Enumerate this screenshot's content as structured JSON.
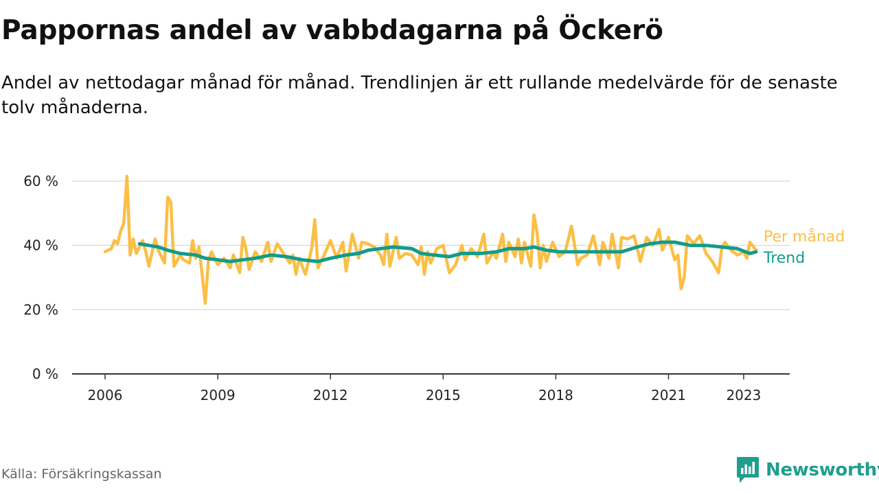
{
  "title": "Pappornas andel av vabbdagarna på Öckerö",
  "subtitle": "Andel av nettodagar månad för månad. Trendlinjen är ett rullande medelvärde för de senaste tolv månaderna.",
  "source": "Källa: Försäkringskassan",
  "brand": {
    "name": "Newsworthy",
    "icon": "newsworthy-logo-icon",
    "color": "#1f9e8e"
  },
  "chart_data": {
    "type": "line",
    "x_type": "date",
    "y_unit": "%",
    "ylim": [
      0,
      60
    ],
    "xlim": [
      "2006-01",
      "2024-01"
    ],
    "y_ticks": [
      0,
      20,
      40,
      60
    ],
    "y_tick_labels": [
      "0 %",
      "20 %",
      "40 %",
      "60 %"
    ],
    "x_ticks": [
      "2006-01",
      "2009-01",
      "2012-01",
      "2015-01",
      "2018-01",
      "2021-01",
      "2023-01"
    ],
    "x_tick_labels": [
      "2006",
      "2009",
      "2012",
      "2015",
      "2018",
      "2021",
      "2023"
    ],
    "grid": true,
    "legend": "right-end",
    "series": [
      {
        "name": "Per månad",
        "color": "#fbbf45",
        "points": [
          [
            "2006-01",
            38
          ],
          [
            "2006-03",
            39
          ],
          [
            "2006-04",
            41.5
          ],
          [
            "2006-05",
            40.5
          ],
          [
            "2006-06",
            44.5
          ],
          [
            "2006-07",
            47
          ],
          [
            "2006-08",
            61.5
          ],
          [
            "2006-09",
            37
          ],
          [
            "2006-10",
            42
          ],
          [
            "2006-11",
            37.5
          ],
          [
            "2007-01",
            41.5
          ],
          [
            "2007-02",
            38
          ],
          [
            "2007-03",
            33.5
          ],
          [
            "2007-05",
            42
          ],
          [
            "2007-06",
            38.5
          ],
          [
            "2007-08",
            34.5
          ],
          [
            "2007-09",
            55
          ],
          [
            "2007-10",
            53.5
          ],
          [
            "2007-11",
            33.5
          ],
          [
            "2008-01",
            37
          ],
          [
            "2008-02",
            35.5
          ],
          [
            "2008-04",
            34.5
          ],
          [
            "2008-05",
            41.5
          ],
          [
            "2008-06",
            36
          ],
          [
            "2008-07",
            39.5
          ],
          [
            "2008-08",
            31
          ],
          [
            "2008-09",
            22
          ],
          [
            "2008-10",
            35
          ],
          [
            "2008-11",
            38
          ],
          [
            "2009-01",
            34
          ],
          [
            "2009-03",
            36
          ],
          [
            "2009-05",
            33
          ],
          [
            "2009-06",
            37
          ],
          [
            "2009-08",
            31.5
          ],
          [
            "2009-09",
            42.5
          ],
          [
            "2009-10",
            39
          ],
          [
            "2009-11",
            32.5
          ],
          [
            "2010-01",
            38
          ],
          [
            "2010-03",
            35
          ],
          [
            "2010-05",
            41
          ],
          [
            "2010-06",
            35
          ],
          [
            "2010-08",
            40.5
          ],
          [
            "2010-10",
            37.5
          ],
          [
            "2010-12",
            34.5
          ],
          [
            "2011-01",
            37
          ],
          [
            "2011-02",
            31
          ],
          [
            "2011-03",
            36
          ],
          [
            "2011-05",
            31
          ],
          [
            "2011-07",
            39
          ],
          [
            "2011-08",
            48
          ],
          [
            "2011-09",
            33
          ],
          [
            "2011-11",
            37
          ],
          [
            "2012-01",
            41.5
          ],
          [
            "2012-03",
            36
          ],
          [
            "2012-05",
            41
          ],
          [
            "2012-06",
            32
          ],
          [
            "2012-08",
            43.5
          ],
          [
            "2012-10",
            36
          ],
          [
            "2012-11",
            41
          ],
          [
            "2013-01",
            40.5
          ],
          [
            "2013-03",
            39.5
          ],
          [
            "2013-05",
            37
          ],
          [
            "2013-06",
            34
          ],
          [
            "2013-07",
            43.5
          ],
          [
            "2013-08",
            33.5
          ],
          [
            "2013-10",
            42.5
          ],
          [
            "2013-11",
            36
          ],
          [
            "2014-01",
            37.5
          ],
          [
            "2014-03",
            37
          ],
          [
            "2014-05",
            34
          ],
          [
            "2014-06",
            39.5
          ],
          [
            "2014-07",
            31
          ],
          [
            "2014-08",
            38
          ],
          [
            "2014-09",
            34.5
          ],
          [
            "2014-11",
            39
          ],
          [
            "2015-01",
            40
          ],
          [
            "2015-03",
            31.5
          ],
          [
            "2015-05",
            34
          ],
          [
            "2015-07",
            40
          ],
          [
            "2015-08",
            35.5
          ],
          [
            "2015-10",
            39
          ],
          [
            "2015-12",
            36.5
          ],
          [
            "2016-02",
            43.5
          ],
          [
            "2016-03",
            34.5
          ],
          [
            "2016-05",
            38
          ],
          [
            "2016-06",
            36
          ],
          [
            "2016-08",
            43.5
          ],
          [
            "2016-09",
            35
          ],
          [
            "2016-10",
            41
          ],
          [
            "2016-12",
            36.5
          ],
          [
            "2017-01",
            42
          ],
          [
            "2017-02",
            34.5
          ],
          [
            "2017-03",
            41
          ],
          [
            "2017-05",
            33.5
          ],
          [
            "2017-06",
            49.5
          ],
          [
            "2017-07",
            44
          ],
          [
            "2017-08",
            33
          ],
          [
            "2017-09",
            40
          ],
          [
            "2017-10",
            35
          ],
          [
            "2017-12",
            41
          ],
          [
            "2018-02",
            36.5
          ],
          [
            "2018-04",
            38
          ],
          [
            "2018-06",
            46
          ],
          [
            "2018-08",
            34
          ],
          [
            "2018-09",
            36
          ],
          [
            "2018-11",
            37
          ],
          [
            "2019-01",
            43
          ],
          [
            "2019-03",
            34
          ],
          [
            "2019-04",
            41
          ],
          [
            "2019-06",
            36
          ],
          [
            "2019-07",
            43.5
          ],
          [
            "2019-09",
            33
          ],
          [
            "2019-10",
            42.5
          ],
          [
            "2019-12",
            42
          ],
          [
            "2020-02",
            43
          ],
          [
            "2020-04",
            35
          ],
          [
            "2020-06",
            42.5
          ],
          [
            "2020-08",
            40
          ],
          [
            "2020-10",
            45
          ],
          [
            "2020-11",
            38.5
          ],
          [
            "2021-01",
            42.5
          ],
          [
            "2021-03",
            35.5
          ],
          [
            "2021-04",
            37
          ],
          [
            "2021-05",
            26.5
          ],
          [
            "2021-06",
            30
          ],
          [
            "2021-07",
            43
          ],
          [
            "2021-09",
            40.5
          ],
          [
            "2021-11",
            43
          ],
          [
            "2022-01",
            37.5
          ],
          [
            "2022-03",
            35
          ],
          [
            "2022-05",
            31.5
          ],
          [
            "2022-06",
            39
          ],
          [
            "2022-07",
            41
          ],
          [
            "2022-09",
            38.5
          ],
          [
            "2022-11",
            37
          ],
          [
            "2023-01",
            38
          ],
          [
            "2023-02",
            36
          ],
          [
            "2023-03",
            41
          ],
          [
            "2023-05",
            38.5
          ]
        ]
      },
      {
        "name": "Trend",
        "color": "#129b8c",
        "points": [
          [
            "2006-12",
            40.5
          ],
          [
            "2007-03",
            40
          ],
          [
            "2007-06",
            39.5
          ],
          [
            "2007-09",
            38.5
          ],
          [
            "2008-01",
            37.5
          ],
          [
            "2008-06",
            37
          ],
          [
            "2008-09",
            36
          ],
          [
            "2009-01",
            35.5
          ],
          [
            "2009-05",
            35
          ],
          [
            "2009-09",
            35.5
          ],
          [
            "2010-01",
            36
          ],
          [
            "2010-06",
            37
          ],
          [
            "2010-11",
            36.5
          ],
          [
            "2011-04",
            35.5
          ],
          [
            "2011-09",
            35
          ],
          [
            "2012-01",
            36
          ],
          [
            "2012-06",
            37
          ],
          [
            "2012-10",
            37.5
          ],
          [
            "2013-01",
            38.5
          ],
          [
            "2013-05",
            39
          ],
          [
            "2013-09",
            39.5
          ],
          [
            "2014-03",
            39
          ],
          [
            "2014-06",
            37.5
          ],
          [
            "2014-10",
            37
          ],
          [
            "2015-03",
            36.5
          ],
          [
            "2015-07",
            37.5
          ],
          [
            "2016-01",
            37.5
          ],
          [
            "2016-06",
            38
          ],
          [
            "2016-10",
            39
          ],
          [
            "2017-03",
            39
          ],
          [
            "2017-06",
            39.5
          ],
          [
            "2017-10",
            38.5
          ],
          [
            "2018-02",
            38
          ],
          [
            "2018-07",
            38
          ],
          [
            "2018-12",
            38
          ],
          [
            "2019-05",
            38
          ],
          [
            "2019-10",
            38
          ],
          [
            "2020-03",
            39.5
          ],
          [
            "2020-07",
            40.5
          ],
          [
            "2020-11",
            41
          ],
          [
            "2021-03",
            41
          ],
          [
            "2021-08",
            40
          ],
          [
            "2022-01",
            40
          ],
          [
            "2022-06",
            39.5
          ],
          [
            "2022-11",
            39
          ],
          [
            "2023-03",
            37.5
          ],
          [
            "2023-05",
            38
          ]
        ]
      }
    ]
  }
}
